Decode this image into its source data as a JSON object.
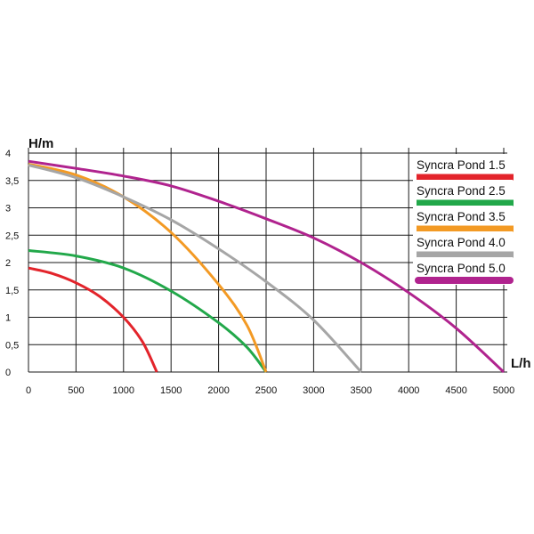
{
  "chart_data": {
    "type": "line",
    "title": "",
    "xlabel": "L/h",
    "ylabel": "H/m",
    "xlim": [
      0,
      5000
    ],
    "ylim": [
      0,
      4
    ],
    "grid": true,
    "legend_position": "right",
    "x_ticks": [
      "0",
      "500",
      "1000",
      "1500",
      "2000",
      "2500",
      "3000",
      "3500",
      "4000",
      "4500",
      "5000"
    ],
    "y_ticks": [
      "0",
      "0,5",
      "1",
      "1,5",
      "2",
      "2,5",
      "3",
      "3,5",
      "4"
    ],
    "series": [
      {
        "name": "Syncra Pond 1.5",
        "color": "#e3242b",
        "x": [
          0,
          250,
          500,
          750,
          1000,
          1200,
          1350
        ],
        "y": [
          1.9,
          1.8,
          1.63,
          1.38,
          1.0,
          0.55,
          0.0
        ]
      },
      {
        "name": "Syncra Pond 2.5",
        "color": "#22a84a",
        "x": [
          0,
          500,
          1000,
          1500,
          2000,
          2300,
          2500
        ],
        "y": [
          2.22,
          2.12,
          1.9,
          1.48,
          0.9,
          0.45,
          0.0
        ]
      },
      {
        "name": "Syncra Pond 3.5",
        "color": "#f39a24",
        "x": [
          0,
          500,
          1000,
          1500,
          2000,
          2300,
          2500
        ],
        "y": [
          3.8,
          3.6,
          3.2,
          2.55,
          1.6,
          0.85,
          0.0
        ]
      },
      {
        "name": "Syncra Pond 4.0",
        "color": "#a6a6a6",
        "x": [
          0,
          500,
          1000,
          1500,
          2000,
          2500,
          3000,
          3500
        ],
        "y": [
          3.78,
          3.55,
          3.2,
          2.78,
          2.25,
          1.65,
          0.95,
          0.0
        ]
      },
      {
        "name": "Syncra Pond 5.0",
        "color": "#b0238e",
        "x": [
          0,
          500,
          1000,
          1500,
          2000,
          2500,
          3000,
          3500,
          4000,
          4500,
          5000
        ],
        "y": [
          3.85,
          3.72,
          3.58,
          3.4,
          3.12,
          2.8,
          2.45,
          2.0,
          1.45,
          0.8,
          0.0
        ]
      }
    ]
  }
}
